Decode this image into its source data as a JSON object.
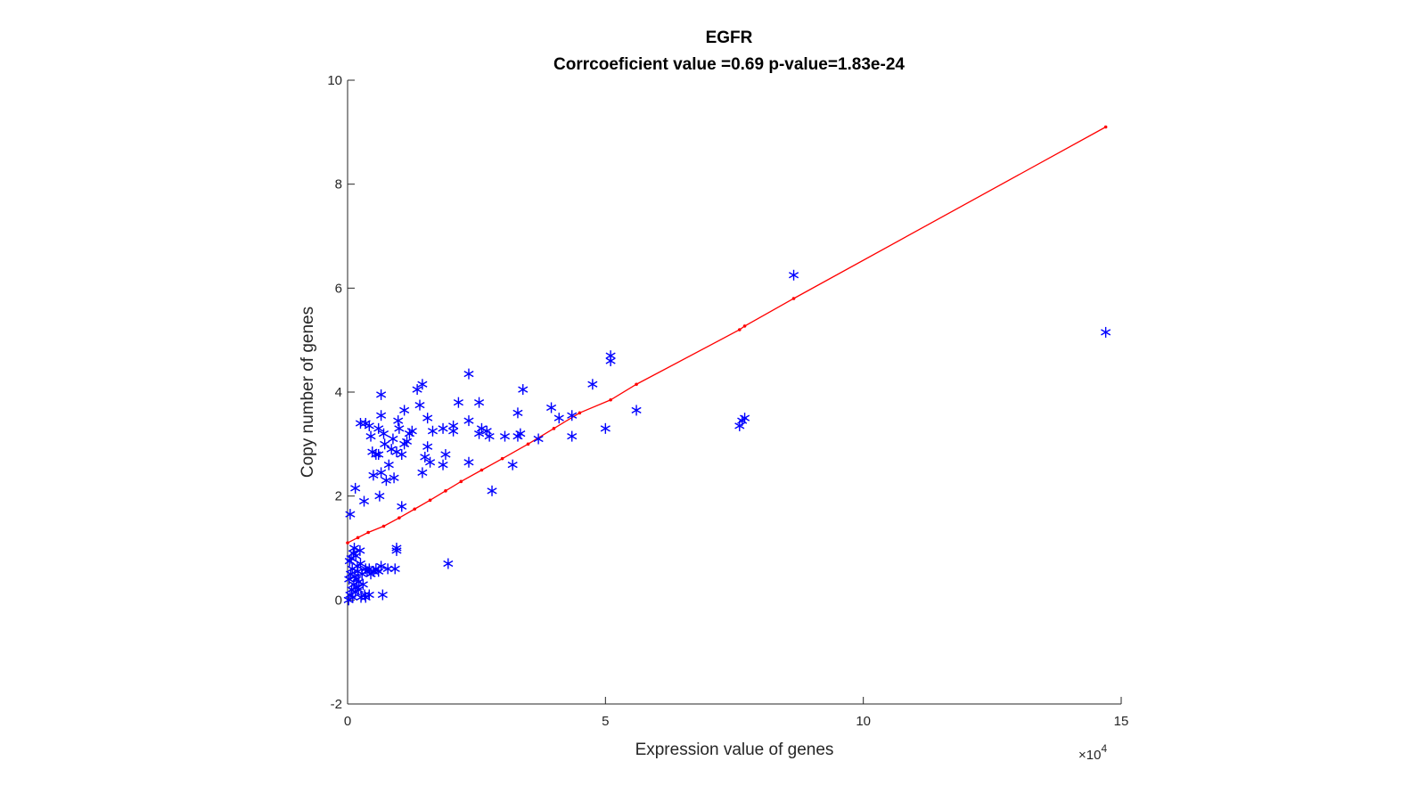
{
  "chart_data": {
    "type": "scatter",
    "title": "EGFR",
    "subtitle": "Corrcoeficient value =0.69  p-value=1.83e-24",
    "xlabel": "Expression value of genes",
    "ylabel": "Copy number of genes",
    "x_exponent_base": "×10",
    "x_exponent_power": "4",
    "xlim": [
      0,
      15
    ],
    "ylim": [
      -2,
      10
    ],
    "xticks": [
      0,
      5,
      10,
      15
    ],
    "yticks": [
      -2,
      0,
      2,
      4,
      6,
      8,
      10
    ],
    "grid": false,
    "legend": "none",
    "colors": {
      "points": "#0000ff",
      "fit": "#ff0000",
      "axes": "#262626"
    },
    "series": [
      {
        "marker": "asterisk",
        "points": [
          [
            0.02,
            0.0
          ],
          [
            0.05,
            0.1
          ],
          [
            0.08,
            0.2
          ],
          [
            0.1,
            0.05
          ],
          [
            0.12,
            0.3
          ],
          [
            0.15,
            0.15
          ],
          [
            0.03,
            0.4
          ],
          [
            0.06,
            0.5
          ],
          [
            0.09,
            0.6
          ],
          [
            0.14,
            0.45
          ],
          [
            0.18,
            0.25
          ],
          [
            0.2,
            0.55
          ],
          [
            0.22,
            0.35
          ],
          [
            0.25,
            0.7
          ],
          [
            0.04,
            0.75
          ],
          [
            0.07,
            0.8
          ],
          [
            0.11,
            0.9
          ],
          [
            0.16,
            0.85
          ],
          [
            0.19,
            0.65
          ],
          [
            0.24,
            0.95
          ],
          [
            0.28,
            0.5
          ],
          [
            0.3,
            0.3
          ],
          [
            0.33,
            0.1
          ],
          [
            0.35,
            0.6
          ],
          [
            0.13,
            1.0
          ],
          [
            0.17,
            0.4
          ],
          [
            0.21,
            0.2
          ],
          [
            0.26,
            0.05
          ],
          [
            0.38,
            0.55
          ],
          [
            0.42,
            0.6
          ],
          [
            0.45,
            0.5
          ],
          [
            0.5,
            0.55
          ],
          [
            0.55,
            0.6
          ],
          [
            0.6,
            0.55
          ],
          [
            0.65,
            0.65
          ],
          [
            0.78,
            0.6
          ],
          [
            0.92,
            0.6
          ],
          [
            0.95,
            1.0
          ],
          [
            0.68,
            0.1
          ],
          [
            0.42,
            0.1
          ],
          [
            0.35,
            0.05
          ],
          [
            0.05,
            1.65
          ],
          [
            0.15,
            2.15
          ],
          [
            0.32,
            1.9
          ],
          [
            0.62,
            2.0
          ],
          [
            1.05,
            1.8
          ],
          [
            0.5,
            2.4
          ],
          [
            0.75,
            2.3
          ],
          [
            0.9,
            2.35
          ],
          [
            0.65,
            2.45
          ],
          [
            0.8,
            2.6
          ],
          [
            0.55,
            2.8
          ],
          [
            0.48,
            2.85
          ],
          [
            0.6,
            2.8
          ],
          [
            0.72,
            3.0
          ],
          [
            0.85,
            2.9
          ],
          [
            0.95,
            2.85
          ],
          [
            1.05,
            2.8
          ],
          [
            1.1,
            3.0
          ],
          [
            1.15,
            3.05
          ],
          [
            1.2,
            3.2
          ],
          [
            1.25,
            3.25
          ],
          [
            1.0,
            3.3
          ],
          [
            0.98,
            3.45
          ],
          [
            0.88,
            3.1
          ],
          [
            0.7,
            3.2
          ],
          [
            0.6,
            3.3
          ],
          [
            0.45,
            3.15
          ],
          [
            0.35,
            3.4
          ],
          [
            0.25,
            3.4
          ],
          [
            0.42,
            3.35
          ],
          [
            0.65,
            3.55
          ],
          [
            0.65,
            3.95
          ],
          [
            1.1,
            3.65
          ],
          [
            1.35,
            4.05
          ],
          [
            1.45,
            4.15
          ],
          [
            1.4,
            3.75
          ],
          [
            1.55,
            3.5
          ],
          [
            1.65,
            3.25
          ],
          [
            1.55,
            2.95
          ],
          [
            1.5,
            2.75
          ],
          [
            1.6,
            2.65
          ],
          [
            1.45,
            2.45
          ],
          [
            1.85,
            2.6
          ],
          [
            1.9,
            2.8
          ],
          [
            1.85,
            3.3
          ],
          [
            2.05,
            3.25
          ],
          [
            2.05,
            3.35
          ],
          [
            2.15,
            3.8
          ],
          [
            2.35,
            3.45
          ],
          [
            2.35,
            4.35
          ],
          [
            2.55,
            3.8
          ],
          [
            2.6,
            3.3
          ],
          [
            2.55,
            3.2
          ],
          [
            2.7,
            3.25
          ],
          [
            2.75,
            3.15
          ],
          [
            2.35,
            2.65
          ],
          [
            2.8,
            2.1
          ],
          [
            3.05,
            3.15
          ],
          [
            3.2,
            2.6
          ],
          [
            3.3,
            3.15
          ],
          [
            3.35,
            3.2
          ],
          [
            3.3,
            3.6
          ],
          [
            3.4,
            4.05
          ],
          [
            3.7,
            3.1
          ],
          [
            3.95,
            3.7
          ],
          [
            4.1,
            3.5
          ],
          [
            4.35,
            3.55
          ],
          [
            4.35,
            3.15
          ],
          [
            4.75,
            4.15
          ],
          [
            5.0,
            3.3
          ],
          [
            5.1,
            4.6
          ],
          [
            5.1,
            4.7
          ],
          [
            5.6,
            3.65
          ],
          [
            1.95,
            0.7
          ],
          [
            0.95,
            0.95
          ],
          [
            7.6,
            3.35
          ],
          [
            7.65,
            3.45
          ],
          [
            7.7,
            3.5
          ],
          [
            8.65,
            6.25
          ],
          [
            14.7,
            5.15
          ]
        ]
      },
      {
        "name": "",
        "marker": "line+dot",
        "points": [
          [
            0.0,
            1.1
          ],
          [
            0.2,
            1.2
          ],
          [
            0.4,
            1.3
          ],
          [
            0.7,
            1.42
          ],
          [
            1.0,
            1.58
          ],
          [
            1.3,
            1.75
          ],
          [
            1.6,
            1.92
          ],
          [
            1.9,
            2.1
          ],
          [
            2.2,
            2.28
          ],
          [
            2.6,
            2.5
          ],
          [
            3.0,
            2.72
          ],
          [
            3.5,
            3.0
          ],
          [
            4.0,
            3.3
          ],
          [
            4.5,
            3.6
          ],
          [
            5.1,
            3.85
          ],
          [
            5.6,
            4.15
          ],
          [
            7.6,
            5.2
          ],
          [
            7.7,
            5.27
          ],
          [
            8.65,
            5.8
          ],
          [
            14.7,
            9.1
          ]
        ]
      }
    ]
  }
}
